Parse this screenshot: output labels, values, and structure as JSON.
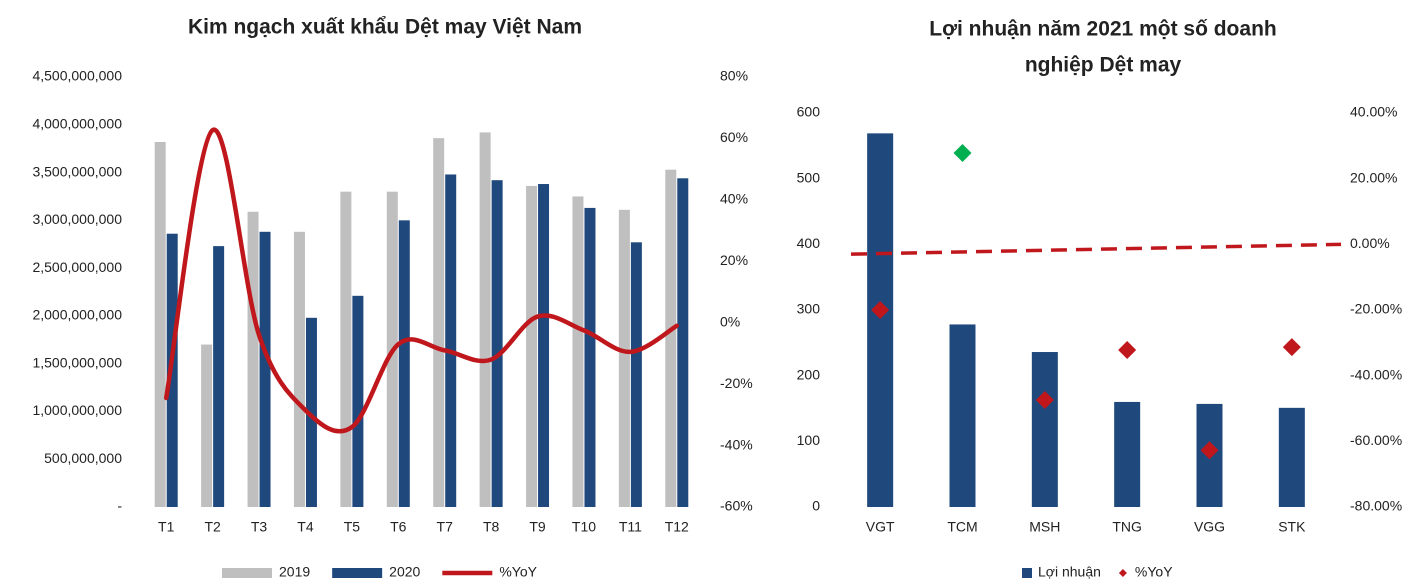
{
  "chart_data": [
    {
      "type": "bar",
      "title": "Kim ngạch xuất khẩu Dệt may Việt Nam",
      "categories": [
        "T1",
        "T2",
        "T3",
        "T4",
        "T5",
        "T6",
        "T7",
        "T8",
        "T9",
        "T10",
        "T11",
        "T12"
      ],
      "series": [
        {
          "name": "2019",
          "type": "bar",
          "color": "#bfbfbf",
          "values": [
            3820000000,
            1700000000,
            3090000000,
            2880000000,
            3300000000,
            3300000000,
            3860000000,
            3920000000,
            3360000000,
            3250000000,
            3110000000,
            3530000000
          ]
        },
        {
          "name": "2020",
          "type": "bar",
          "color": "#1f497d",
          "values": [
            2860000000,
            2730000000,
            2880000000,
            1980000000,
            2210000000,
            3000000000,
            3480000000,
            3420000000,
            3380000000,
            3130000000,
            2770000000,
            3440000000
          ]
        },
        {
          "name": "%YoY",
          "type": "line",
          "axis": "y2",
          "color": "#c0171c",
          "values": [
            -24.5,
            62.7,
            -4,
            -28.5,
            -34,
            -7,
            -9,
            -12,
            2,
            -2.5,
            -9.5,
            -1
          ]
        }
      ],
      "ylim": [
        0,
        4500000000
      ],
      "yticks": [
        {
          "value": 0,
          "label": "-"
        },
        {
          "value": 500000000,
          "label": "500,000,000"
        },
        {
          "value": 1000000000,
          "label": "1,000,000,000"
        },
        {
          "value": 1500000000,
          "label": "1,500,000,000"
        },
        {
          "value": 2000000000,
          "label": "2,000,000,000"
        },
        {
          "value": 2500000000,
          "label": "2,500,000,000"
        },
        {
          "value": 3000000000,
          "label": "3,000,000,000"
        },
        {
          "value": 3500000000,
          "label": "3,500,000,000"
        },
        {
          "value": 4000000000,
          "label": "4,000,000,000"
        },
        {
          "value": 4500000000,
          "label": "4,500,000,000"
        }
      ],
      "y2lim": [
        -60,
        80
      ],
      "y2ticks": [
        {
          "value": -60,
          "label": "-60%"
        },
        {
          "value": -40,
          "label": "-40%"
        },
        {
          "value": -20,
          "label": "-20%"
        },
        {
          "value": 0,
          "label": "0%"
        },
        {
          "value": 20,
          "label": "20%"
        },
        {
          "value": 40,
          "label": "40%"
        },
        {
          "value": 60,
          "label": "60%"
        },
        {
          "value": 80,
          "label": "80%"
        }
      ],
      "grid": false,
      "legend": "bottom"
    },
    {
      "type": "bar",
      "title": [
        "Lợi nhuận năm 2021 một số doanh",
        "nghiệp Dệt may"
      ],
      "categories": [
        "VGT",
        "TCM",
        "MSH",
        "TNG",
        "VGG",
        "STK"
      ],
      "series": [
        {
          "name": "Lợi nhuận",
          "type": "bar",
          "color": "#1f497d",
          "values": [
            569,
            278,
            236,
            160,
            157,
            151
          ]
        },
        {
          "name": "%YoY",
          "type": "scatter",
          "axis": "y2",
          "color": "#c0171c",
          "colors": [
            "#c0171c",
            "#00b050",
            "#c0171c",
            "#c0171c",
            "#c0171c",
            "#c0171c"
          ],
          "values": [
            -20,
            27.8,
            -47.4,
            -32.2,
            -62.7,
            -31.3
          ]
        }
      ],
      "trendline": {
        "axis": "y2",
        "color": "#c0171c",
        "values": [
          -3,
          0
        ]
      },
      "ylim": [
        0,
        600
      ],
      "yticks": [
        0,
        100,
        200,
        300,
        400,
        500,
        600
      ],
      "y2lim": [
        -80,
        40
      ],
      "y2ticks": [
        {
          "value": -80,
          "label": "-80.00%"
        },
        {
          "value": -60,
          "label": "-60.00%"
        },
        {
          "value": -40,
          "label": "-40.00%"
        },
        {
          "value": -20,
          "label": "-20.00%"
        },
        {
          "value": 0,
          "label": "0.00%"
        },
        {
          "value": 20,
          "label": "20.00%"
        },
        {
          "value": 40,
          "label": "40.00%"
        }
      ],
      "grid": false,
      "legend": "bottom"
    }
  ]
}
